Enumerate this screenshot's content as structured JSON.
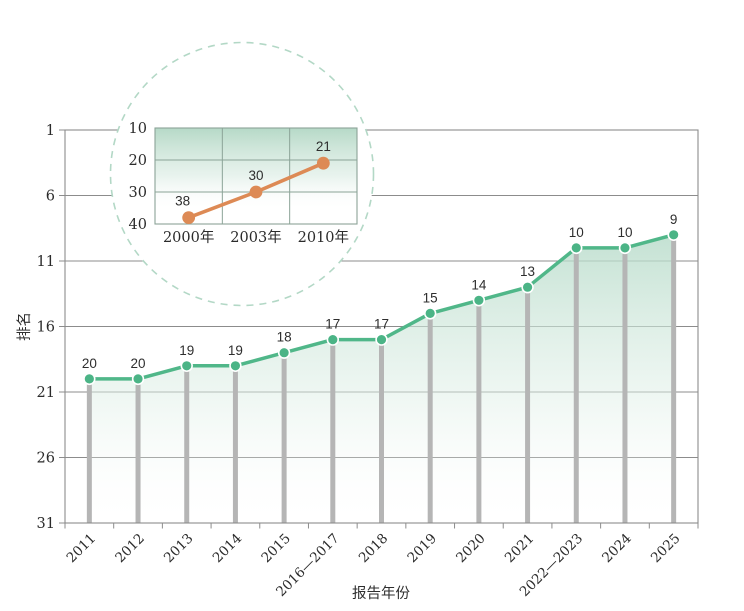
{
  "figure": {
    "y_axis_title": "排名",
    "x_axis_title": "报告年份"
  },
  "colors": {
    "main_line": "#50b789",
    "main_marker": "#4bb486",
    "stem_bar": "#b5b5b5",
    "grid": "#8c8c8c",
    "area_top": "#b5dac8",
    "inset_line": "#dd8a55",
    "inset_marker": "#dd8a55",
    "inset_bg_top": "#b2d7c4",
    "inset_grid": "#8ba397",
    "inset_circle_border": "#b3d8c6",
    "text": "#2b2b2b"
  },
  "chart_data": [
    {
      "id": "main-ranking-trend",
      "type": "line",
      "title": "",
      "categories": [
        "2011",
        "2012",
        "2013",
        "2014",
        "2015",
        "2016—2017",
        "2018",
        "2019",
        "2020",
        "2021",
        "2022—2023",
        "2024",
        "2025"
      ],
      "values": [
        20,
        20,
        19,
        19,
        18,
        17,
        17,
        15,
        14,
        13,
        10,
        10,
        9
      ],
      "xlabel": "报告年份",
      "ylabel": "排名",
      "yticks": [
        1,
        6,
        11,
        16,
        21,
        26,
        31
      ],
      "ylim": [
        1,
        31
      ],
      "y_axis_inverted": true,
      "grid": true,
      "legend": "none",
      "style_notes": "green line with circular markers, gray vertical stem bars to x-axis, green-to-white gradient area fill"
    },
    {
      "id": "inset-historical-ranking",
      "type": "line",
      "title": "",
      "categories": [
        "2000年",
        "2003年",
        "2010年"
      ],
      "values": [
        38,
        30,
        21
      ],
      "yticks": [
        10,
        20,
        30,
        40
      ],
      "ylim": [
        10,
        40
      ],
      "y_axis_inverted": true,
      "grid": true,
      "legend": "none",
      "style_notes": "orange line with circular markers inside a white circle with dashed light-green border, green gradient plot background"
    }
  ]
}
